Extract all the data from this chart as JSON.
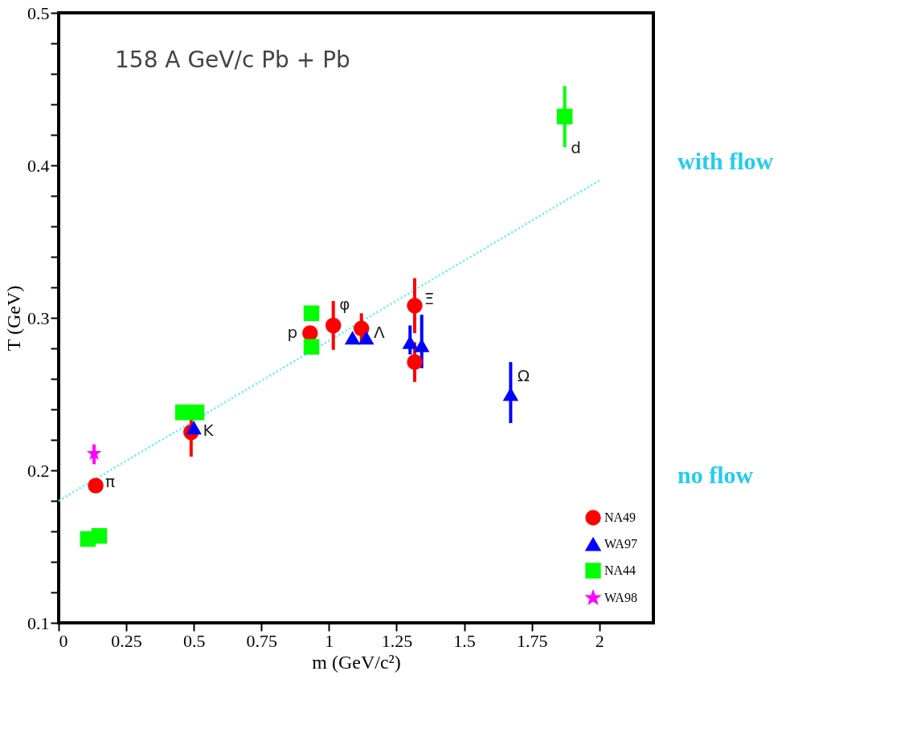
{
  "chart_data": {
    "type": "scatter",
    "xlabel": "m (GeV/c²)",
    "ylabel": "T (GeV)",
    "xlim": [
      0,
      2.2
    ],
    "ylim": [
      0.1,
      0.5
    ],
    "xticks": [
      0,
      0.25,
      0.5,
      0.75,
      1,
      1.25,
      1.5,
      1.75,
      2
    ],
    "yticks": [
      0.1,
      {
        "value": 0.12,
        "label": null
      },
      {
        "value": 0.14,
        "label": null
      },
      {
        "value": 0.16,
        "label": null
      },
      {
        "value": 0.18,
        "label": null
      },
      0.2,
      {
        "value": 0.22,
        "label": null
      },
      {
        "value": 0.24,
        "label": null
      },
      {
        "value": 0.26,
        "label": null
      },
      {
        "value": 0.28,
        "label": null
      },
      0.3,
      {
        "value": 0.32,
        "label": null
      },
      {
        "value": 0.34,
        "label": null
      },
      {
        "value": 0.36,
        "label": null
      },
      {
        "value": 0.38,
        "label": null
      },
      0.4,
      {
        "value": 0.42,
        "label": null
      },
      {
        "value": 0.44,
        "label": null
      },
      {
        "value": 0.46,
        "label": null
      },
      {
        "value": 0.48,
        "label": null
      },
      0.5
    ],
    "grid": false,
    "legend": "bottom right",
    "series": [
      {
        "name": "NA49",
        "color": "#ff0000",
        "marker": "circle",
        "x": [
          0.137,
          0.49,
          0.93,
          1.016,
          1.12,
          1.317,
          1.317
        ],
        "values": [
          0.19,
          0.225,
          0.29,
          0.295,
          0.293,
          0.308,
          0.271
        ],
        "errors": [
          null,
          0.016,
          null,
          0.016,
          0.01,
          0.018,
          0.013
        ]
      },
      {
        "name": "WA97",
        "color": "#0000ff",
        "marker": "triangle",
        "x": [
          0.5,
          1.087,
          1.138,
          1.3,
          1.343,
          1.672
        ],
        "values": [
          0.228,
          0.287,
          0.287,
          0.284,
          0.282,
          0.25
        ],
        "errors": [
          null,
          null,
          null,
          [
            0.276,
            0.295
          ],
          [
            0.267,
            0.302
          ],
          [
            0.231,
            0.271
          ]
        ]
      },
      {
        "name": "NA44",
        "color": "#00ff00",
        "marker": "square",
        "x": [
          0.108,
          0.15,
          0.46,
          0.51,
          0.935,
          0.935,
          1.872
        ],
        "values": [
          0.155,
          0.157,
          0.238,
          0.238,
          0.303,
          0.281,
          0.432
        ],
        "errors": [
          null,
          null,
          null,
          null,
          null,
          null,
          0.02
        ]
      },
      {
        "name": "WA98",
        "color": "#ff00ff",
        "marker": "star",
        "x": [
          0.131
        ],
        "values": [
          0.211
        ],
        "errors": [
          [
            0.204,
            0.217
          ]
        ]
      },
      {
        "type": "line",
        "color": "#55eeff",
        "line_style": "dotted",
        "x": [
          0,
          2
        ],
        "values": [
          0.18,
          0.39
        ]
      }
    ],
    "annotations": [
      "158 A GeV/c Pb + Pb",
      {
        "text": "π",
        "x": 0.137,
        "y": 0.19
      },
      {
        "text": "K",
        "x": 0.5,
        "y": 0.228
      },
      {
        "text": "p",
        "x": 0.93,
        "y": 0.29
      },
      {
        "text": "φ",
        "x": 1.016,
        "y": 0.295
      },
      {
        "text": "Λ",
        "x": 1.138,
        "y": 0.287
      },
      {
        "text": "Ξ",
        "x": 1.317,
        "y": 0.308
      },
      {
        "text": "Ω",
        "x": 1.672,
        "y": 0.25
      },
      {
        "text": "d",
        "x": 1.872,
        "y": 0.432
      },
      "with flow",
      "no flow"
    ]
  }
}
